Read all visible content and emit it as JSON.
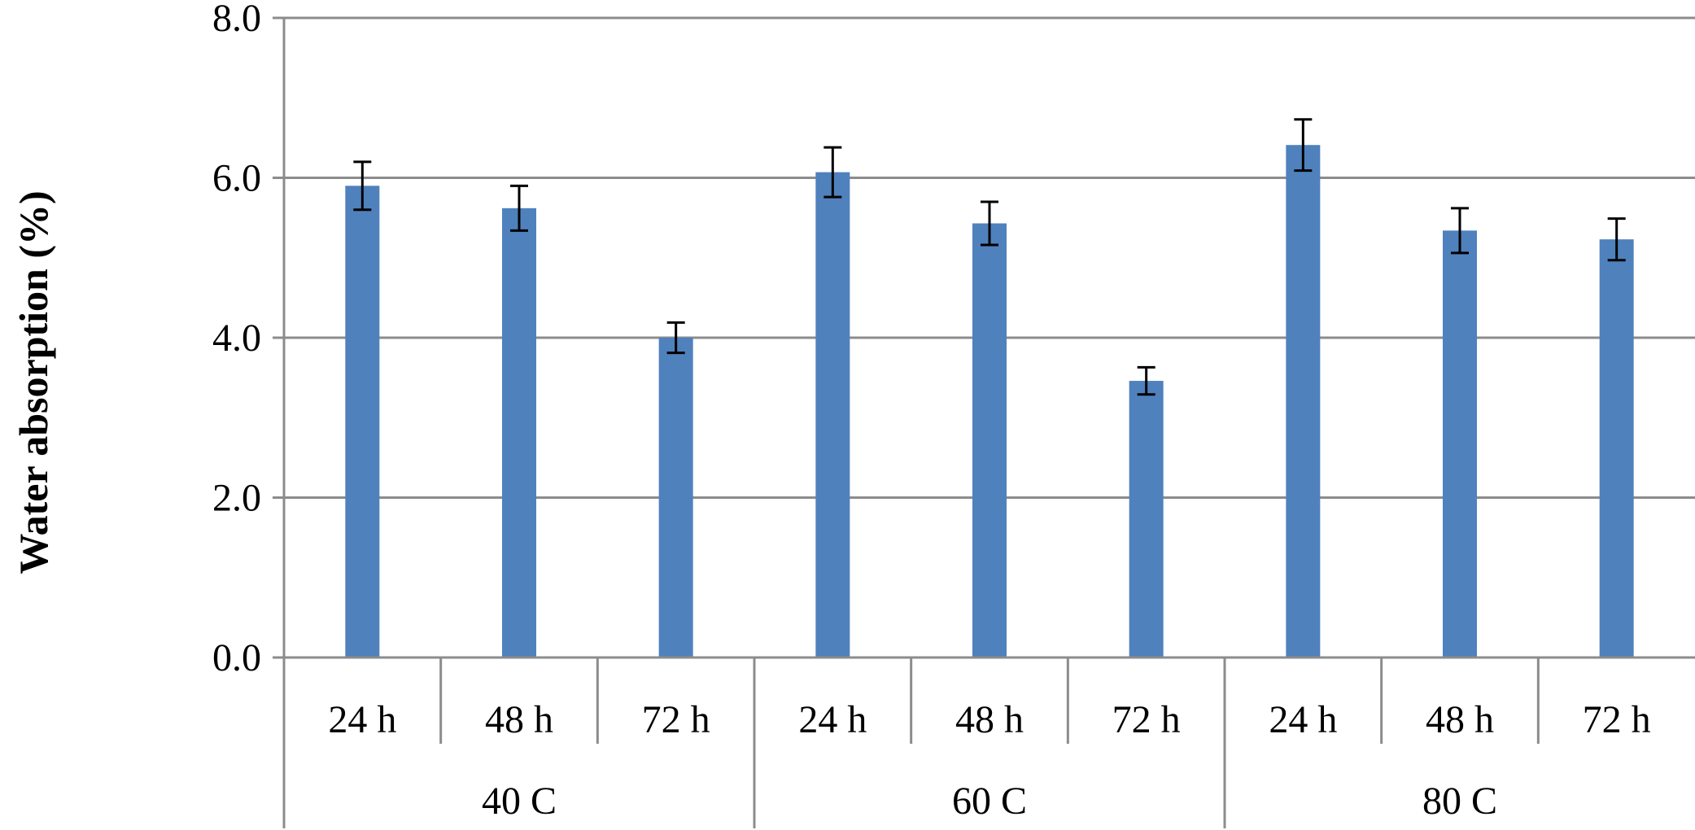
{
  "chart_data": {
    "type": "bar",
    "title": "",
    "xlabel": "",
    "ylabel": "Water absorption (%)",
    "ylim": [
      0,
      8
    ],
    "yticks": [
      "0.0",
      "2.0",
      "4.0",
      "6.0",
      "8.0"
    ],
    "grid": true,
    "legend": "none",
    "bar_color": "#4f81bd",
    "groups": [
      {
        "label": "40 C",
        "categories": [
          "24 h",
          "48 h",
          "72 h"
        ]
      },
      {
        "label": "60 C",
        "categories": [
          "24 h",
          "48 h",
          "72 h"
        ]
      },
      {
        "label": "80 C",
        "categories": [
          "24 h",
          "48 h",
          "72 h"
        ]
      }
    ],
    "values": [
      5.9,
      5.62,
      4.0,
      6.07,
      5.43,
      3.46,
      6.41,
      5.34,
      5.23
    ],
    "errors": [
      0.3,
      0.28,
      0.19,
      0.31,
      0.27,
      0.17,
      0.32,
      0.28,
      0.26
    ]
  }
}
